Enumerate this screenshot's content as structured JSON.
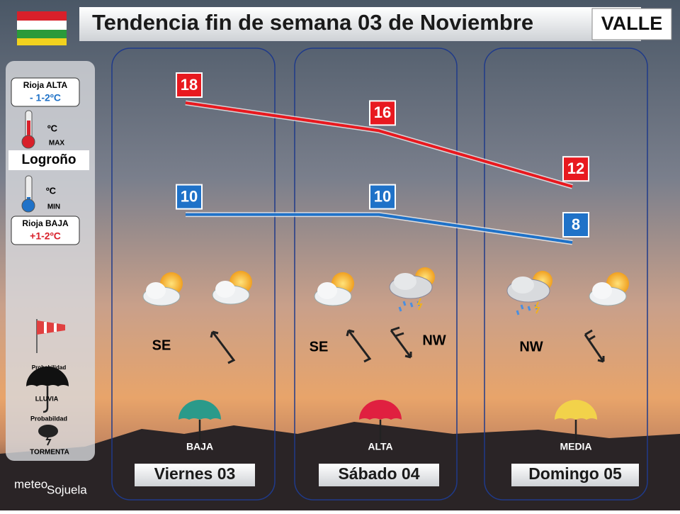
{
  "title": "Tendencia fin de semana 03 de Noviembre",
  "zone": "VALLE",
  "sidebar": {
    "alta_label": "Rioja ALTA",
    "alta_value": "- 1-2ºC",
    "max_unit": "ºC",
    "max_label": "MAX",
    "city": "Logroño",
    "min_unit": "ºC",
    "min_label": "MIN",
    "baja_label": "Rioja BAJA",
    "baja_value": "+1-2ºC",
    "rain_prob_label": "Probabilidad",
    "rain_label": "LLUVIA",
    "storm_prob_label": "Probabildad",
    "storm_label": "TORMENTA",
    "brand_1": "meteo",
    "brand_2": "Sojuela"
  },
  "days": [
    {
      "winds": [
        "SE"
      ],
      "rain": "BAJA"
    },
    {
      "winds": [
        "SE",
        "NW"
      ],
      "rain": "ALTA"
    },
    {
      "winds": [
        "NW"
      ],
      "rain": "MEDIA"
    }
  ],
  "chart_data": {
    "type": "line",
    "categories": [
      "Viernes 03",
      "Sábado 04",
      "Domingo 05"
    ],
    "series": [
      {
        "color": "#e8191f",
        "values": [
          18,
          16,
          12
        ]
      },
      {
        "color": "#1f72c8",
        "values": [
          10,
          10,
          8
        ]
      }
    ]
  }
}
